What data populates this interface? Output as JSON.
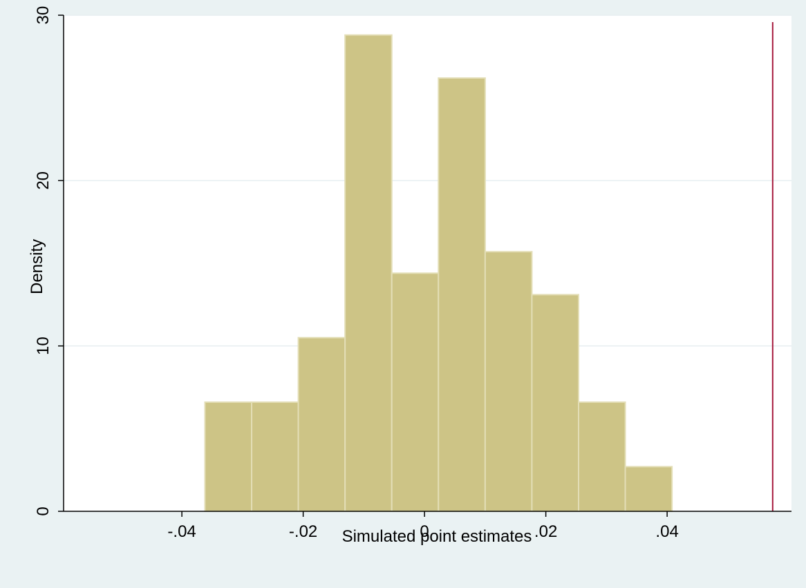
{
  "chart_data": {
    "type": "bar",
    "subtype": "histogram",
    "title": "",
    "xlabel": "Simulated point estimates",
    "ylabel": "Density",
    "xlim": [
      -0.0595,
      0.0605
    ],
    "ylim": [
      0,
      30
    ],
    "xticks": [
      {
        "value": -0.04,
        "label": "-.04"
      },
      {
        "value": -0.02,
        "label": "-.02"
      },
      {
        "value": 0,
        "label": "0"
      },
      {
        "value": 0.02,
        "label": ".02"
      },
      {
        "value": 0.04,
        "label": ".04"
      }
    ],
    "yticks": [
      {
        "value": 0,
        "label": "0"
      },
      {
        "value": 10,
        "label": "10"
      },
      {
        "value": 20,
        "label": "20"
      },
      {
        "value": 30,
        "label": "30"
      }
    ],
    "bins": [
      {
        "start": -0.0362,
        "end": -0.0285,
        "density": 6.6
      },
      {
        "start": -0.0285,
        "end": -0.0208,
        "density": 6.6
      },
      {
        "start": -0.0208,
        "end": -0.0131,
        "density": 10.5
      },
      {
        "start": -0.0131,
        "end": -0.0054,
        "density": 28.8
      },
      {
        "start": -0.0054,
        "end": 0.0023,
        "density": 14.4
      },
      {
        "start": 0.0023,
        "end": 0.01,
        "density": 26.2
      },
      {
        "start": 0.01,
        "end": 0.0177,
        "density": 15.7
      },
      {
        "start": 0.0177,
        "end": 0.0254,
        "density": 13.1
      },
      {
        "start": 0.0254,
        "end": 0.0331,
        "density": 6.6
      },
      {
        "start": 0.0331,
        "end": 0.0408,
        "density": 2.7
      }
    ],
    "reference_line": {
      "x": 0.0574,
      "color": "#a6193c"
    },
    "bar_color": "#cdc486",
    "bar_edge_color": "#e3deb6",
    "plot_background": "#ffffff",
    "outer_background": "#eaf2f3",
    "grid": true,
    "grid_color": "#e6eef0"
  }
}
